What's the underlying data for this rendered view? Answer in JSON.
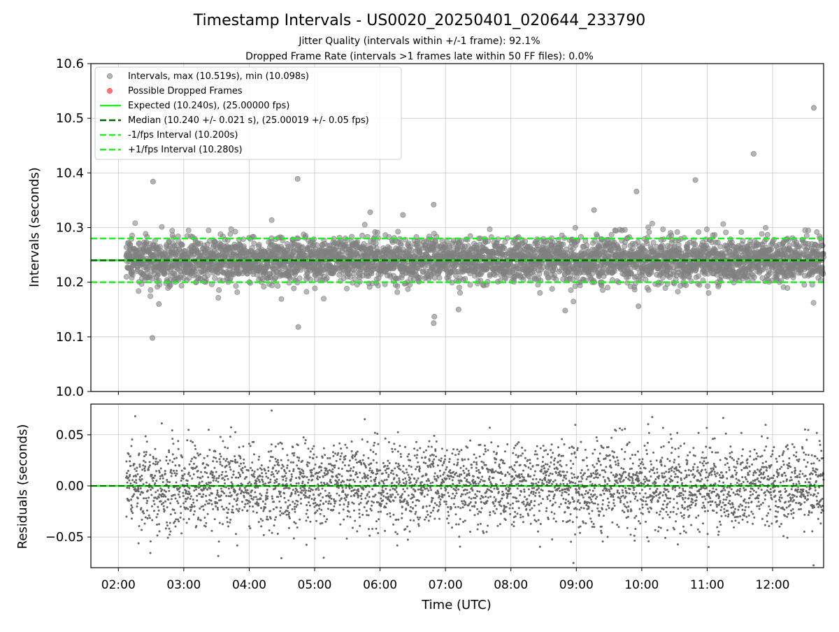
{
  "chart_data": [
    {
      "type": "scatter",
      "title": "Timestamp Intervals - US0020_20250401_020644_233790",
      "subtitle_lines": [
        "Jitter Quality (intervals within +/-1 frame): 92.1%",
        "Dropped Frame Rate (intervals >1 frames late within 50 FF files): 0.0%"
      ],
      "xlabel": "",
      "ylabel": "Intervals (seconds)",
      "x_unit": "hours UTC",
      "xlim": [
        1.58,
        12.78
      ],
      "ylim": [
        10.0,
        10.6
      ],
      "yticks": [
        "10.0",
        "10.1",
        "10.2",
        "10.3",
        "10.4",
        "10.5",
        "10.6"
      ],
      "grid": true,
      "legend_position": "upper left",
      "colors": {
        "points": "#808080",
        "dropped": "#ff5050",
        "expected": "#22ee22",
        "median": "#006400",
        "bounds": "#22ee22"
      },
      "series": [
        {
          "name": "Intervals, max (10.519s), min (10.098s)",
          "kind": "points",
          "summary": {
            "count": 3850,
            "center": 10.24,
            "std": 0.021,
            "max": 10.519,
            "min": 10.098
          },
          "notable_points": [
            {
              "x": 12.63,
              "y": 10.519
            },
            {
              "x": 11.71,
              "y": 10.435
            },
            {
              "x": 2.53,
              "y": 10.384
            },
            {
              "x": 4.74,
              "y": 10.389
            },
            {
              "x": 10.82,
              "y": 10.387
            },
            {
              "x": 9.92,
              "y": 10.366
            },
            {
              "x": 6.82,
              "y": 10.342
            },
            {
              "x": 9.27,
              "y": 10.332
            },
            {
              "x": 6.35,
              "y": 10.323
            },
            {
              "x": 5.85,
              "y": 10.328
            },
            {
              "x": 2.52,
              "y": 10.098
            },
            {
              "x": 4.75,
              "y": 10.118
            },
            {
              "x": 6.82,
              "y": 10.125
            },
            {
              "x": 6.83,
              "y": 10.137
            },
            {
              "x": 7.2,
              "y": 10.15
            },
            {
              "x": 8.83,
              "y": 10.148
            },
            {
              "x": 2.62,
              "y": 10.16
            },
            {
              "x": 9.95,
              "y": 10.156
            }
          ]
        },
        {
          "name": "Possible Dropped Frames",
          "kind": "points",
          "values": []
        },
        {
          "name": "Expected (10.240s), (25.00000 fps)",
          "kind": "hline",
          "y": 10.24
        },
        {
          "name": "Median (10.240 +/- 0.021 s), (25.00019 +/- 0.05 fps)",
          "kind": "hline",
          "y": 10.24
        },
        {
          "name": "-1/fps Interval (10.200s)",
          "kind": "hline",
          "y": 10.2
        },
        {
          "name": "+1/fps Interval (10.280s)",
          "kind": "hline",
          "y": 10.28
        }
      ]
    },
    {
      "type": "scatter",
      "title": "",
      "xlabel": "Time (UTC)",
      "ylabel": "Residuals (seconds)",
      "x_unit": "hours UTC",
      "xlim": [
        1.58,
        12.78
      ],
      "ylim": [
        -0.08,
        0.08
      ],
      "yticks": [
        "−0.05",
        "0.00",
        "0.05"
      ],
      "xticks": [
        "02:00",
        "03:00",
        "04:00",
        "05:00",
        "06:00",
        "07:00",
        "08:00",
        "09:00",
        "10:00",
        "11:00",
        "12:00"
      ],
      "grid": true,
      "series": [
        {
          "kind": "points",
          "summary": {
            "count": 3850,
            "center": 0.0,
            "std": 0.021
          }
        },
        {
          "kind": "hline",
          "y": 0.0
        }
      ]
    }
  ]
}
